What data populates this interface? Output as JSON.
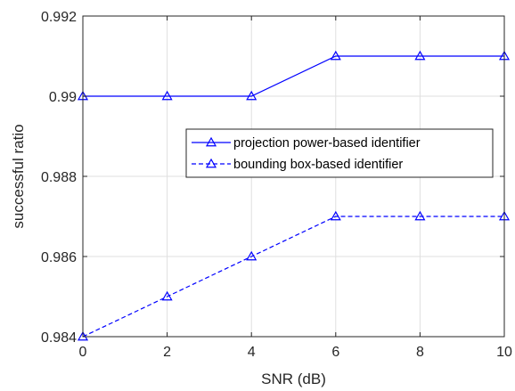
{
  "chart_data": {
    "type": "line",
    "title": "",
    "xlabel": "SNR (dB)",
    "ylabel": "successful ratio",
    "x": [
      0,
      2,
      4,
      6,
      8,
      10
    ],
    "xlim": [
      0,
      10
    ],
    "ylim": [
      0.984,
      0.992
    ],
    "xticks": [
      "0",
      "2",
      "4",
      "6",
      "8",
      "10"
    ],
    "yticks": [
      "0.984",
      "0.986",
      "0.988",
      "0.99",
      "0.992"
    ],
    "grid": true,
    "legend_position": "center-right",
    "series": [
      {
        "name": "projection power-based identifier",
        "values": [
          0.99,
          0.99,
          0.99,
          0.991,
          0.991,
          0.991
        ],
        "line_style": "solid",
        "marker": "triangle",
        "color": "#0000ff"
      },
      {
        "name": "bounding box-based identifier",
        "values": [
          0.984,
          0.985,
          0.986,
          0.987,
          0.987,
          0.987
        ],
        "line_style": "dashed",
        "marker": "triangle",
        "color": "#0000ff"
      }
    ]
  }
}
